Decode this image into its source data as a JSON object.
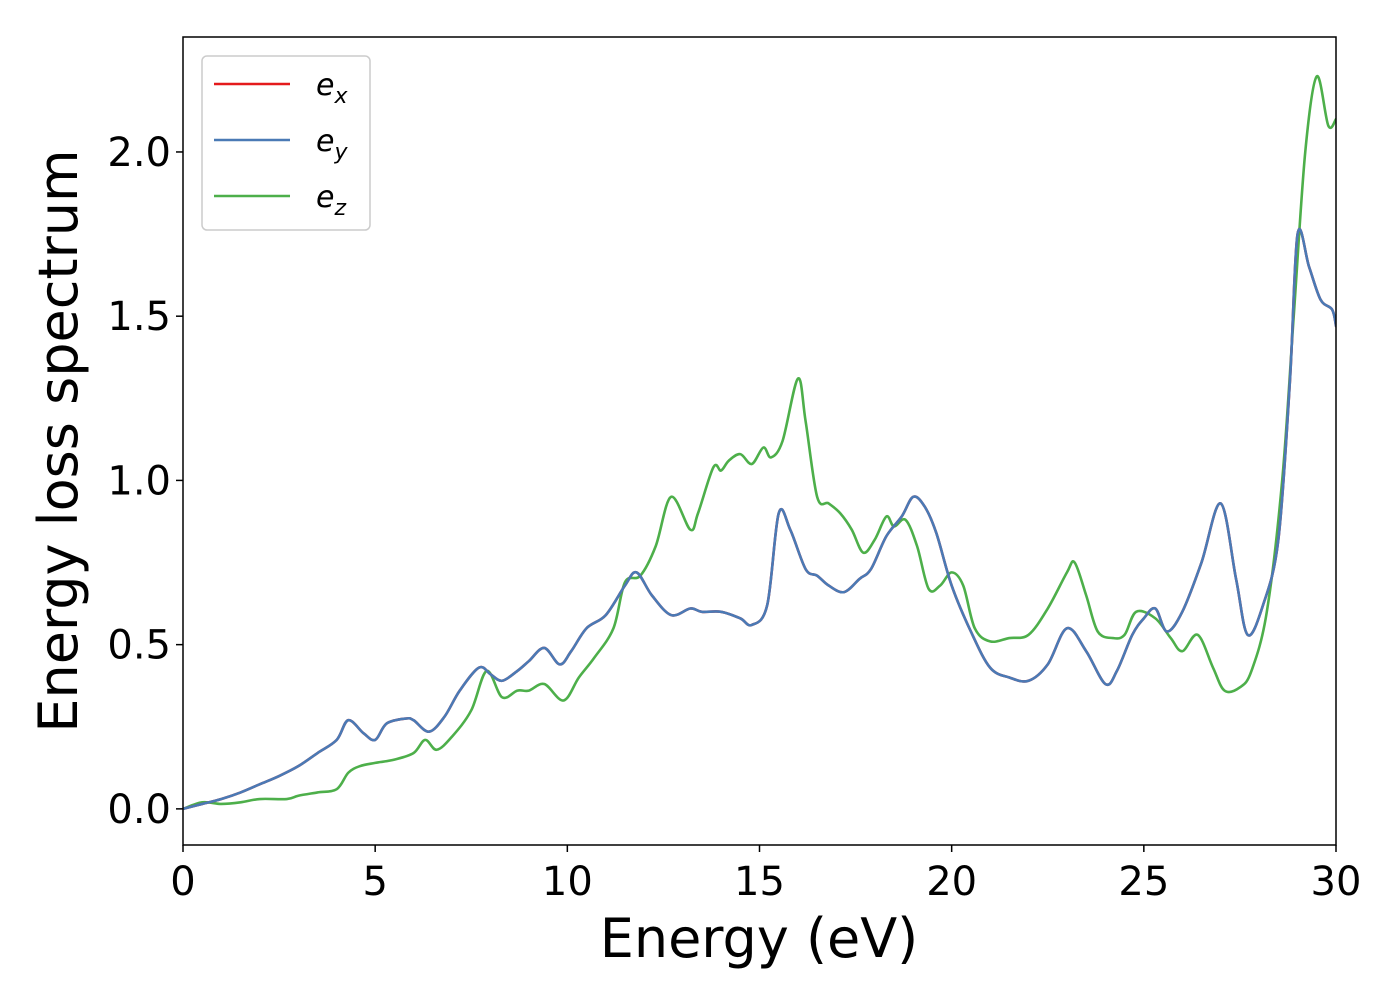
{
  "chart_data": {
    "type": "line",
    "title": "",
    "xlabel": "Energy (eV)",
    "ylabel": "Energy loss spectrum",
    "xlim": [
      0,
      30
    ],
    "ylim": [
      -0.11,
      2.35
    ],
    "xticks": [
      0,
      5,
      10,
      15,
      20,
      25,
      30
    ],
    "yticks": [
      0.0,
      0.5,
      1.0,
      1.5,
      2.0
    ],
    "xtick_labels": [
      "0",
      "5",
      "10",
      "15",
      "20",
      "25",
      "30"
    ],
    "ytick_labels": [
      "0.0",
      "0.5",
      "1.0",
      "1.5",
      "2.0"
    ],
    "grid": false,
    "legend_position": "top-left",
    "series": [
      {
        "name": "e",
        "subscript": "x",
        "color": "#e41a1c",
        "x": [
          0,
          0.5,
          1,
          1.5,
          2,
          2.5,
          3,
          3.5,
          4,
          4.3,
          4.7,
          5,
          5.3,
          5.8,
          6,
          6.4,
          6.8,
          7.2,
          7.7,
          8,
          8.3,
          8.7,
          9,
          9.4,
          9.8,
          10.1,
          10.5,
          11,
          11.5,
          11.8,
          12.2,
          12.7,
          13.2,
          13.5,
          14,
          14.5,
          14.8,
          15.2,
          15.5,
          15.8,
          16.2,
          16.5,
          16.8,
          17.2,
          17.6,
          17.9,
          18.3,
          18.7,
          19,
          19.3,
          19.6,
          20,
          20.5,
          21,
          21.5,
          22,
          22.5,
          23,
          23.5,
          24,
          24.3,
          24.7,
          25,
          25.3,
          25.6,
          26,
          26.5,
          27,
          27.4,
          27.7,
          28.1,
          28.5,
          28.8,
          29,
          29.3,
          29.6,
          29.9,
          30
        ],
        "y": [
          0.0,
          0.015,
          0.03,
          0.05,
          0.075,
          0.1,
          0.13,
          0.17,
          0.21,
          0.27,
          0.23,
          0.21,
          0.26,
          0.275,
          0.27,
          0.235,
          0.28,
          0.36,
          0.43,
          0.41,
          0.39,
          0.42,
          0.45,
          0.49,
          0.44,
          0.48,
          0.55,
          0.59,
          0.68,
          0.72,
          0.65,
          0.59,
          0.61,
          0.6,
          0.6,
          0.58,
          0.56,
          0.62,
          0.9,
          0.85,
          0.73,
          0.71,
          0.68,
          0.66,
          0.7,
          0.73,
          0.83,
          0.89,
          0.95,
          0.92,
          0.84,
          0.68,
          0.54,
          0.43,
          0.4,
          0.39,
          0.44,
          0.55,
          0.48,
          0.38,
          0.42,
          0.53,
          0.58,
          0.61,
          0.54,
          0.6,
          0.75,
          0.93,
          0.7,
          0.53,
          0.62,
          0.82,
          1.3,
          1.75,
          1.65,
          1.55,
          1.52,
          1.47
        ]
      },
      {
        "name": "e",
        "subscript": "y",
        "color": "#4a7ab5",
        "x": [
          0,
          0.5,
          1,
          1.5,
          2,
          2.5,
          3,
          3.5,
          4,
          4.3,
          4.7,
          5,
          5.3,
          5.8,
          6,
          6.4,
          6.8,
          7.2,
          7.7,
          8,
          8.3,
          8.7,
          9,
          9.4,
          9.8,
          10.1,
          10.5,
          11,
          11.5,
          11.8,
          12.2,
          12.7,
          13.2,
          13.5,
          14,
          14.5,
          14.8,
          15.2,
          15.5,
          15.8,
          16.2,
          16.5,
          16.8,
          17.2,
          17.6,
          17.9,
          18.3,
          18.7,
          19,
          19.3,
          19.6,
          20,
          20.5,
          21,
          21.5,
          22,
          22.5,
          23,
          23.5,
          24,
          24.3,
          24.7,
          25,
          25.3,
          25.6,
          26,
          26.5,
          27,
          27.4,
          27.7,
          28.1,
          28.5,
          28.8,
          29,
          29.3,
          29.6,
          29.9,
          30
        ],
        "y": [
          0.0,
          0.015,
          0.03,
          0.05,
          0.075,
          0.1,
          0.13,
          0.17,
          0.21,
          0.27,
          0.23,
          0.21,
          0.26,
          0.275,
          0.27,
          0.235,
          0.28,
          0.36,
          0.43,
          0.41,
          0.39,
          0.42,
          0.45,
          0.49,
          0.44,
          0.48,
          0.55,
          0.59,
          0.68,
          0.72,
          0.65,
          0.59,
          0.61,
          0.6,
          0.6,
          0.58,
          0.56,
          0.62,
          0.9,
          0.85,
          0.73,
          0.71,
          0.68,
          0.66,
          0.7,
          0.73,
          0.83,
          0.89,
          0.95,
          0.92,
          0.84,
          0.68,
          0.54,
          0.43,
          0.4,
          0.39,
          0.44,
          0.55,
          0.48,
          0.38,
          0.42,
          0.53,
          0.58,
          0.61,
          0.54,
          0.6,
          0.75,
          0.93,
          0.7,
          0.53,
          0.62,
          0.82,
          1.3,
          1.75,
          1.65,
          1.55,
          1.52,
          1.47
        ]
      },
      {
        "name": "e",
        "subscript": "z",
        "color": "#4daf4a",
        "x": [
          0,
          0.5,
          1,
          1.5,
          2,
          2.7,
          3,
          3.5,
          4,
          4.3,
          4.6,
          5,
          5.5,
          6,
          6.3,
          6.6,
          7,
          7.5,
          7.9,
          8.3,
          8.7,
          9,
          9.4,
          9.9,
          10.3,
          10.7,
          11.2,
          11.5,
          11.9,
          12.3,
          12.7,
          13.2,
          13.4,
          13.8,
          14,
          14.2,
          14.5,
          14.8,
          15.1,
          15.3,
          15.6,
          16,
          16.2,
          16.5,
          16.8,
          17.1,
          17.4,
          17.7,
          18,
          18.3,
          18.5,
          18.8,
          19.1,
          19.4,
          19.7,
          20,
          20.3,
          20.6,
          21,
          21.5,
          22,
          22.5,
          23,
          23.2,
          23.5,
          23.8,
          24.2,
          24.5,
          24.8,
          25.3,
          25.7,
          26,
          26.4,
          26.8,
          27.1,
          27.5,
          27.8,
          28.2,
          28.6,
          28.9,
          29.2,
          29.5,
          29.8,
          30
        ],
        "y": [
          0.0,
          0.02,
          0.015,
          0.02,
          0.03,
          0.03,
          0.04,
          0.05,
          0.06,
          0.11,
          0.13,
          0.14,
          0.15,
          0.17,
          0.21,
          0.18,
          0.22,
          0.3,
          0.42,
          0.34,
          0.36,
          0.36,
          0.38,
          0.33,
          0.4,
          0.46,
          0.55,
          0.69,
          0.71,
          0.8,
          0.95,
          0.85,
          0.9,
          1.04,
          1.03,
          1.06,
          1.08,
          1.05,
          1.1,
          1.07,
          1.12,
          1.31,
          1.18,
          0.95,
          0.93,
          0.9,
          0.85,
          0.78,
          0.82,
          0.89,
          0.86,
          0.88,
          0.8,
          0.67,
          0.68,
          0.72,
          0.68,
          0.55,
          0.51,
          0.52,
          0.53,
          0.61,
          0.72,
          0.75,
          0.65,
          0.54,
          0.52,
          0.53,
          0.6,
          0.58,
          0.52,
          0.48,
          0.53,
          0.43,
          0.36,
          0.37,
          0.42,
          0.6,
          1.0,
          1.5,
          2.0,
          2.23,
          2.08,
          2.1
        ]
      }
    ]
  }
}
